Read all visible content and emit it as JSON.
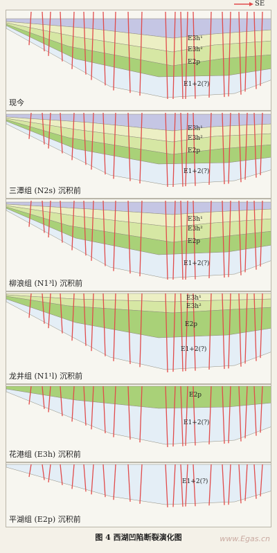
{
  "direction_label": "SE",
  "panels": [
    {
      "caption": "现今",
      "units": [
        "E3h¹",
        "E3h²",
        "E2p",
        "E1+2(?)"
      ]
    },
    {
      "caption": "三潭组 (N2s) 沉积前",
      "units": [
        "E3h¹",
        "E3h²",
        "E2p",
        "E1+2(?)"
      ]
    },
    {
      "caption": "柳浪组 (N1³l) 沉积前",
      "units": [
        "E3h¹",
        "E3h²",
        "E2p",
        "E1+2(?)"
      ]
    },
    {
      "caption": "龙井组 (N1¹l) 沉积前",
      "units": [
        "E3h¹",
        "E3h²",
        "E2p",
        "E1+2(?)"
      ]
    },
    {
      "caption": "花港组 (E3h) 沉积前",
      "units": [
        "E2p",
        "E1+2(?)"
      ]
    },
    {
      "caption": "平湖组 (E2p) 沉积前",
      "units": [
        "E1+2(?)"
      ]
    }
  ],
  "figure_caption": "图 4   西湖凹陷断裂演化图",
  "watermark": "www.Egas.cn",
  "colors": {
    "young": "#c5c6e4",
    "e3h1": "#ecefc4",
    "e3h2": "#d6e7a4",
    "e2p": "#a9d178",
    "base": "#e4eef6",
    "fault": "#e14a4a"
  }
}
